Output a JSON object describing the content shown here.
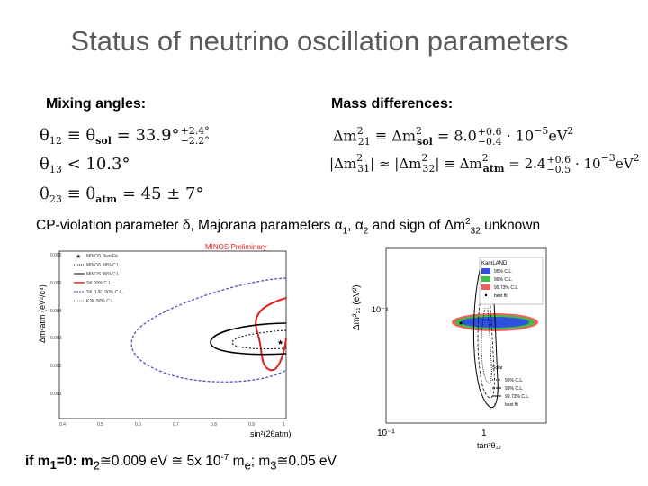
{
  "title": "Status of neutrino oscillation parameters",
  "mixing": {
    "header": "Mixing angles:",
    "theta12": {
      "lhs": "θ",
      "sub": "12",
      "rel": "≡ θ",
      "rel_sub": "sol",
      "eq": "= 33.9°",
      "up": "+2.4°",
      "down": "−2.2°"
    },
    "theta13": {
      "lhs": "θ",
      "sub": "13",
      "rest": "< 10.3°"
    },
    "theta23": {
      "lhs": "θ",
      "sub": "23",
      "rel": "≡ θ",
      "rel_sub": "atm",
      "rest": "= 45 ± 7°"
    }
  },
  "mass": {
    "header": "Mass differences:",
    "dm21": {
      "lhs": "Δm",
      "sup": "2",
      "sub": "21",
      "rel": "≡ Δm",
      "rel_sup": "2",
      "rel_sub": "sol",
      "eq": "= 8.0",
      "up": "+0.6",
      "down": "−0.4",
      "tail": "· 10",
      "exp": "−5",
      "unit": "eV",
      "unit_sup": "2"
    },
    "dm31": {
      "lhs": "|Δm",
      "sup": "2",
      "sub": "31",
      "mid": "| ≈ |Δm",
      "mid_sup": "2",
      "mid_sub": "32",
      "mid2": "| ≡ Δm",
      "rel_sup": "2",
      "rel_sub": "atm",
      "eq": "= 2.4",
      "up": "+0.6",
      "down": "−0.5",
      "tail": "· 10",
      "exp": "−3",
      "unit": "eV",
      "unit_sup": "2"
    }
  },
  "cp_line": {
    "part1": "CP-violation parameter  δ, Majorana parameters α",
    "s1": "1",
    "part2": ", α",
    "s2": "2",
    "part3": " and sign of Δm",
    "sup": "2",
    "s3": "32",
    "part4": " unknown"
  },
  "bottom_line": {
    "text1": "if m",
    "s1": "1",
    "text2": "=0:  m",
    "s2": "2",
    "text3": "≅0.009 eV ≅ 5x 10",
    "exp": "-7",
    "text4": " m",
    "s3": "e",
    "text5": "; m",
    "s4": "3",
    "text6": "≅0.05 eV"
  },
  "left_plot": {
    "label": "MINOS Preliminary",
    "ylabel": "Δm²atm (eV²/c⁴)",
    "xlabel": "sin²(2θatm)",
    "yticks": [
      "0.006",
      "0.005",
      "0.004",
      "0.003",
      "0.002",
      "0.001"
    ],
    "xticks": [
      "0.4",
      "0.5",
      "0.6",
      "0.7",
      "0.8",
      "0.9",
      "1"
    ],
    "legend": [
      "MINOS Best Fit",
      "MINOS 68% C.L.",
      "MINOS 90% C.L.",
      "SK 90% C.L.",
      "SK (L/E) 90% C.L.",
      "K2K 90% C.L."
    ],
    "colors": {
      "best": "#000000",
      "m68": "#000000",
      "m90": "#000000",
      "sk": "#e02020",
      "skle": "#4040c0",
      "k2k": "#808080"
    }
  },
  "right_plot": {
    "ylabel": "Δm²₂₁ (eV²)",
    "xlabel": "tan²θ₁₂",
    "ytick": "10⁻⁴",
    "xticks": [
      "10⁻¹",
      "1"
    ],
    "kamland_title": "KamLAND",
    "kamland_legend": [
      "95% C.L.",
      "99% C.L.",
      "99.73% C.L.",
      "best fit"
    ],
    "solar_title": "Solar",
    "solar_legend": [
      "95% C.L.",
      "99% C.L.",
      "99.73% C.L.",
      "best fit"
    ],
    "colors": {
      "k95": "#3050e0",
      "k99": "#40c040",
      "k9973": "#f06060"
    }
  }
}
